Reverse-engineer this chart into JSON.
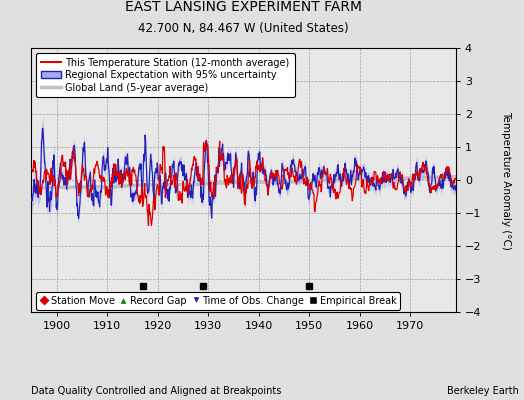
{
  "title": "EAST LANSING EXPERIMENT FARM",
  "subtitle": "42.700 N, 84.467 W (United States)",
  "ylabel": "Temperature Anomaly (°C)",
  "xlabel_note": "Data Quality Controlled and Aligned at Breakpoints",
  "credit": "Berkeley Earth",
  "xlim": [
    1895,
    1979
  ],
  "ylim": [
    -4,
    4
  ],
  "yticks": [
    -4,
    -3,
    -2,
    -1,
    0,
    1,
    2,
    3,
    4
  ],
  "xticks": [
    1900,
    1910,
    1920,
    1930,
    1940,
    1950,
    1960,
    1970
  ],
  "bg_color": "#e0e0e0",
  "plot_bg_color": "#e8e8e8",
  "station_color": "#dd0000",
  "regional_color": "#2222bb",
  "regional_fill": "#aaaaee",
  "global_color": "#c0c0c0",
  "empirical_breaks": [
    1917,
    1929,
    1950
  ],
  "legend_items": [
    {
      "label": "This Temperature Station (12-month average)",
      "color": "#dd0000"
    },
    {
      "label": "Regional Expectation with 95% uncertainty",
      "color": "#2222bb"
    },
    {
      "label": "Global Land (5-year average)",
      "color": "#c0c0c0"
    }
  ],
  "bottom_legend": [
    {
      "label": "Station Move",
      "marker": "D",
      "color": "#dd0000"
    },
    {
      "label": "Record Gap",
      "marker": "^",
      "color": "#008800"
    },
    {
      "label": "Time of Obs. Change",
      "marker": "v",
      "color": "#2222bb"
    },
    {
      "label": "Empirical Break",
      "marker": "s",
      "color": "#000000"
    }
  ]
}
